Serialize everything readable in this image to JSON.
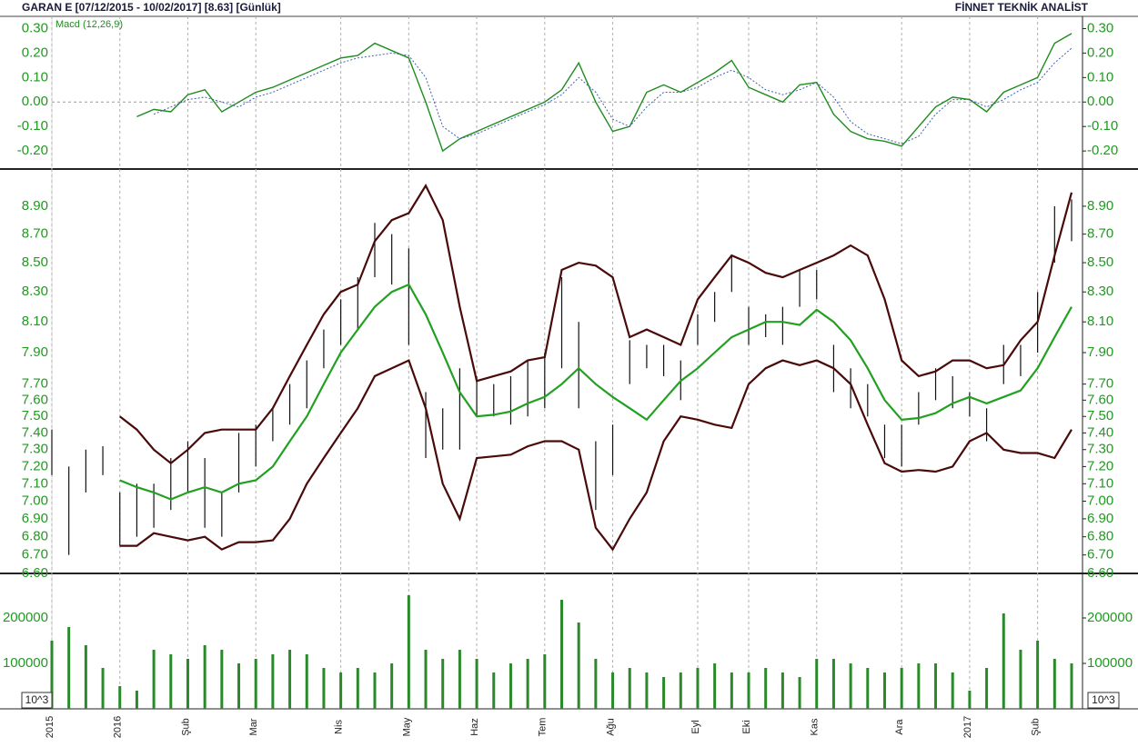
{
  "header": {
    "title": "GARAN E  [07/12/2015 - 10/02/2017]  [8.63]  [Günlük]",
    "source": "FİNNET TEKNİK ANALİST"
  },
  "chart_data": [
    {
      "type": "line",
      "title": "Macd (12,26,9)",
      "ylim": [
        -0.27,
        0.35
      ],
      "yticks": [
        {
          "value": 0.3,
          "label": "0.30"
        },
        {
          "value": 0.2,
          "label": "0.20"
        },
        {
          "value": 0.1,
          "label": "0.10"
        },
        {
          "value": 0,
          "label": "0.00"
        },
        {
          "value": -0.1,
          "label": "-0.10"
        },
        {
          "value": -0.2,
          "label": "-0.20"
        }
      ],
      "zero_line": true,
      "series": [
        {
          "color": "#1e8c1e",
          "values": [
            null,
            null,
            null,
            null,
            null,
            -0.06,
            -0.03,
            -0.04,
            0.03,
            0.05,
            -0.04,
            0,
            0.04,
            0.06,
            0.09,
            0.12,
            0.15,
            0.18,
            0.19,
            0.24,
            0.21,
            0.18,
            0,
            -0.2,
            -0.15,
            -0.12,
            -0.09,
            -0.06,
            -0.03,
            0,
            0.05,
            0.16,
            0,
            -0.12,
            -0.1,
            0.04,
            0.07,
            0.04,
            0.08,
            0.12,
            0.17,
            0.06,
            0.03,
            0,
            0.07,
            0.08,
            -0.05,
            -0.12,
            -0.15,
            -0.16,
            -0.18,
            -0.1,
            -0.02,
            0.02,
            0.01,
            -0.04,
            0.04,
            0.07,
            0.1,
            0.24,
            0.28
          ]
        },
        {
          "color": "#4060b0",
          "dashed": true,
          "values": [
            null,
            null,
            null,
            null,
            null,
            null,
            -0.05,
            -0.02,
            0.01,
            0.02,
            0,
            -0.02,
            0.02,
            0.04,
            0.07,
            0.1,
            0.13,
            0.16,
            0.18,
            0.19,
            0.2,
            0.19,
            0.1,
            -0.1,
            -0.15,
            -0.13,
            -0.1,
            -0.07,
            -0.04,
            -0.01,
            0.03,
            0.1,
            0.04,
            -0.07,
            -0.1,
            -0.02,
            0.04,
            0.04,
            0.06,
            0.1,
            0.13,
            0.1,
            0.05,
            0.03,
            0.05,
            0.08,
            0.02,
            -0.08,
            -0.13,
            -0.15,
            -0.17,
            -0.14,
            -0.05,
            0.01,
            0.01,
            -0.02,
            0.01,
            0.05,
            0.08,
            0.16,
            0.22
          ]
        }
      ]
    },
    {
      "type": "ohlc",
      "log_scale": true,
      "color": "#111111",
      "ylim": [
        6.6,
        9.16
      ],
      "yticks": [
        {
          "value": 6.6,
          "label": "6.60"
        },
        {
          "value": 6.7,
          "label": "6.70"
        },
        {
          "value": 6.8,
          "label": "6.80"
        },
        {
          "value": 6.9,
          "label": "6.90"
        },
        {
          "value": 7.0,
          "label": "7.00"
        },
        {
          "value": 7.1,
          "label": "7.10"
        },
        {
          "value": 7.2,
          "label": "7.20"
        },
        {
          "value": 7.3,
          "label": "7.30"
        },
        {
          "value": 7.4,
          "label": "7.40"
        },
        {
          "value": 7.5,
          "label": "7.50"
        },
        {
          "value": 7.6,
          "label": "7.60"
        },
        {
          "value": 7.7,
          "label": "7.70"
        },
        {
          "value": 7.9,
          "label": "7.90"
        },
        {
          "value": 8.1,
          "label": "8.10"
        },
        {
          "value": 8.3,
          "label": "8.30"
        },
        {
          "value": 8.5,
          "label": "8.50"
        },
        {
          "value": 8.7,
          "label": "8.70"
        },
        {
          "value": 8.9,
          "label": "8.90"
        }
      ],
      "high": [
        7.42,
        7.2,
        7.3,
        7.32,
        7.05,
        7.1,
        7.1,
        7.25,
        7.35,
        7.25,
        7.05,
        7.4,
        7.45,
        7.55,
        7.7,
        7.85,
        8.05,
        8.25,
        8.4,
        8.78,
        8.7,
        8.6,
        7.65,
        7.55,
        7.8,
        7.75,
        7.7,
        7.75,
        7.85,
        7.9,
        8.4,
        8.1,
        7.35,
        7.45,
        7.98,
        7.95,
        7.95,
        7.85,
        8.15,
        8.3,
        8.55,
        8.2,
        8.15,
        8.2,
        8.45,
        8.45,
        7.95,
        7.8,
        7.7,
        7.45,
        7.45,
        7.65,
        7.8,
        7.75,
        7.65,
        7.55,
        7.95,
        7.95,
        8.3,
        8.9,
        8.95
      ],
      "low": [
        7.15,
        6.7,
        7.05,
        7.15,
        6.75,
        6.8,
        6.85,
        6.95,
        7.05,
        6.85,
        6.8,
        7.05,
        7.2,
        7.35,
        7.45,
        7.55,
        7.8,
        7.95,
        8.05,
        8.4,
        8.35,
        7.95,
        7.25,
        7.3,
        7.3,
        7.5,
        7.5,
        7.45,
        7.5,
        7.55,
        7.8,
        7.55,
        6.95,
        7.15,
        7.7,
        7.8,
        7.75,
        7.6,
        7.95,
        8.1,
        8.3,
        7.95,
        8.0,
        7.95,
        8.2,
        8.25,
        7.65,
        7.55,
        7.5,
        7.25,
        7.2,
        7.45,
        7.6,
        7.55,
        7.5,
        7.35,
        7.7,
        7.75,
        7.9,
        8.5,
        8.65
      ],
      "series": [
        {
          "color": "#22a022",
          "values": [
            null,
            null,
            null,
            null,
            7.12,
            7.08,
            7.05,
            7.01,
            7.05,
            7.08,
            7.05,
            7.1,
            7.12,
            7.2,
            7.35,
            7.5,
            7.7,
            7.9,
            8.05,
            8.2,
            8.3,
            8.35,
            8.15,
            7.9,
            7.65,
            7.5,
            7.51,
            7.53,
            7.58,
            7.62,
            7.7,
            7.8,
            7.7,
            7.62,
            7.55,
            7.48,
            7.6,
            7.72,
            7.8,
            7.9,
            8.0,
            8.05,
            8.1,
            8.1,
            8.08,
            8.18,
            8.1,
            7.98,
            7.8,
            7.6,
            7.48,
            7.49,
            7.52,
            7.58,
            7.62,
            7.58,
            7.62,
            7.66,
            7.8,
            8.0,
            8.2
          ]
        },
        {
          "color": "#4a0a0a",
          "values": [
            null,
            null,
            null,
            null,
            7.5,
            7.42,
            7.3,
            7.22,
            7.3,
            7.4,
            7.42,
            7.42,
            7.42,
            7.55,
            7.75,
            7.95,
            8.15,
            8.3,
            8.35,
            8.65,
            8.8,
            8.85,
            9.05,
            8.8,
            8.2,
            7.72,
            7.75,
            7.78,
            7.85,
            7.87,
            8.45,
            8.5,
            8.48,
            8.4,
            8.0,
            8.05,
            8.0,
            7.95,
            8.25,
            8.4,
            8.55,
            8.5,
            8.43,
            8.4,
            8.45,
            8.5,
            8.55,
            8.62,
            8.55,
            8.25,
            7.85,
            7.75,
            7.78,
            7.85,
            7.85,
            7.8,
            7.82,
            7.98,
            8.1,
            8.55,
            9.0
          ]
        },
        {
          "color": "#4a0a0a",
          "values": [
            null,
            null,
            null,
            null,
            6.75,
            6.75,
            6.82,
            6.8,
            6.78,
            6.8,
            6.73,
            6.77,
            6.77,
            6.78,
            6.9,
            7.1,
            7.25,
            7.4,
            7.55,
            7.75,
            7.8,
            7.85,
            7.55,
            7.1,
            6.9,
            7.25,
            7.26,
            7.27,
            7.32,
            7.35,
            7.35,
            7.3,
            6.85,
            6.73,
            6.9,
            7.05,
            7.35,
            7.5,
            7.48,
            7.45,
            7.43,
            7.7,
            7.8,
            7.85,
            7.82,
            7.85,
            7.8,
            7.7,
            7.45,
            7.22,
            7.17,
            7.18,
            7.17,
            7.2,
            7.35,
            7.4,
            7.3,
            7.28,
            7.28,
            7.25,
            7.42
          ]
        }
      ]
    },
    {
      "type": "bar",
      "color": "#2a8a2a",
      "unit_label": "10^3",
      "ylim": [
        0,
        294000
      ],
      "yticks": [
        100000,
        200000
      ],
      "categories": [
        "2015",
        null,
        null,
        null,
        "2016",
        null,
        null,
        null,
        "Şub",
        null,
        null,
        null,
        "Mar",
        null,
        null,
        null,
        null,
        "Nis",
        null,
        null,
        null,
        "May",
        null,
        null,
        null,
        "Haz",
        null,
        null,
        null,
        "Tem",
        null,
        null,
        null,
        "Ağu",
        null,
        null,
        null,
        null,
        "Eyl",
        null,
        null,
        "Eki",
        null,
        null,
        null,
        "Kas",
        null,
        null,
        null,
        null,
        "Ara",
        null,
        null,
        null,
        "2017",
        null,
        null,
        null,
        "Şub",
        null,
        null
      ],
      "values": [
        150000,
        180000,
        140000,
        90000,
        50000,
        40000,
        130000,
        120000,
        110000,
        140000,
        130000,
        100000,
        110000,
        120000,
        130000,
        120000,
        90000,
        80000,
        90000,
        80000,
        100000,
        250000,
        130000,
        110000,
        130000,
        110000,
        80000,
        100000,
        110000,
        120000,
        240000,
        190000,
        110000,
        80000,
        90000,
        80000,
        70000,
        80000,
        90000,
        100000,
        80000,
        80000,
        90000,
        80000,
        70000,
        110000,
        110000,
        100000,
        90000,
        80000,
        90000,
        100000,
        100000,
        80000,
        40000,
        90000,
        210000,
        130000,
        150000,
        110000,
        100000
      ]
    }
  ]
}
